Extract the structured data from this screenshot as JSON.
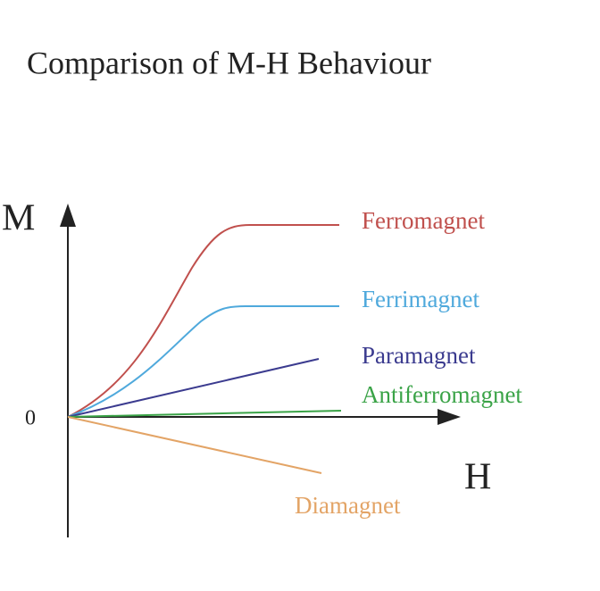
{
  "title": "Comparison of M-H Behaviour",
  "axes": {
    "y_label": "M",
    "x_label": "H",
    "origin_label": "0"
  },
  "curves": [
    {
      "label": "Ferromagnet"
    },
    {
      "label": "Ferrimagnet"
    },
    {
      "label": "Paramagnet"
    },
    {
      "label": "Antiferromagnet"
    },
    {
      "label": "Diamagnet"
    }
  ]
}
